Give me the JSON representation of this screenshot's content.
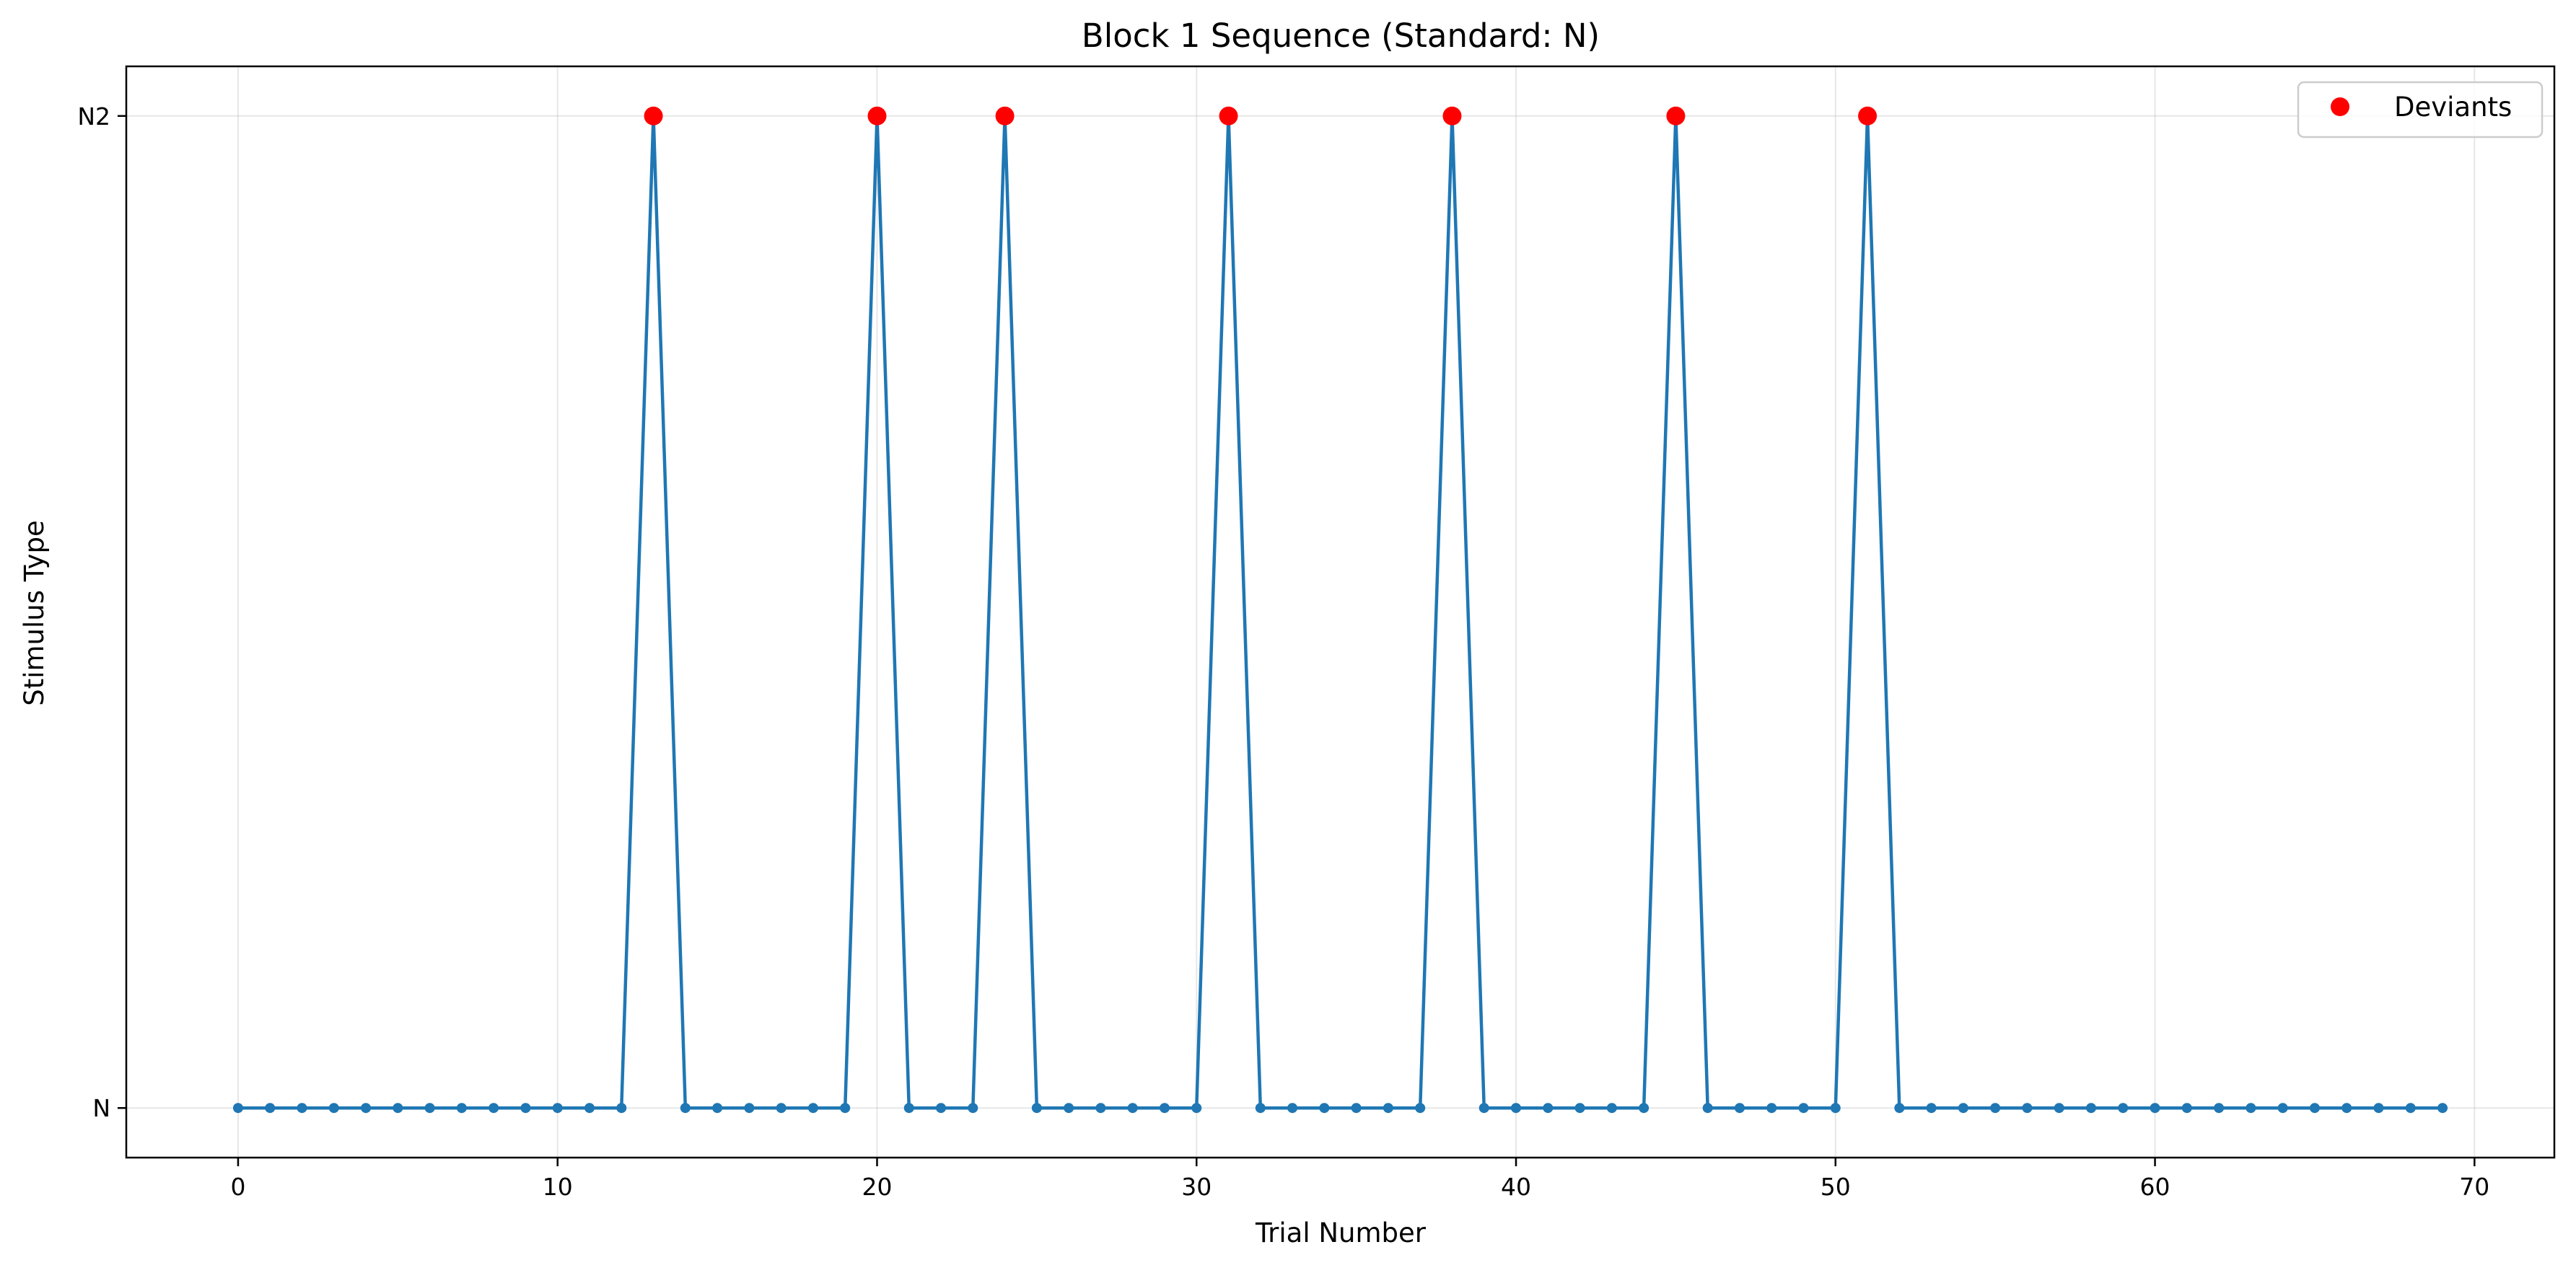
{
  "chart_data": {
    "type": "line",
    "title": "Block 1 Sequence (Standard: N)",
    "xlabel": "Trial Number",
    "ylabel": "Stimulus Type",
    "xlim": [
      -3.5,
      72.5
    ],
    "ylim": [
      -0.05,
      1.05
    ],
    "x_ticks": [
      0,
      10,
      20,
      30,
      40,
      50,
      60,
      70
    ],
    "y_ticks": [
      {
        "value": 0,
        "label": "N"
      },
      {
        "value": 1,
        "label": "N2"
      }
    ],
    "grid": true,
    "legend": {
      "placement": "top-right",
      "entries": [
        "Deviants"
      ]
    },
    "series": [
      {
        "color": "#1f77b4",
        "x": [
          0,
          1,
          2,
          3,
          4,
          5,
          6,
          7,
          8,
          9,
          10,
          11,
          12,
          13,
          14,
          15,
          16,
          17,
          18,
          19,
          20,
          21,
          22,
          23,
          24,
          25,
          26,
          27,
          28,
          29,
          30,
          31,
          32,
          33,
          34,
          35,
          36,
          37,
          38,
          39,
          40,
          41,
          42,
          43,
          44,
          45,
          46,
          47,
          48,
          49,
          50,
          51,
          52,
          53,
          54,
          55,
          56,
          57,
          58,
          59,
          60,
          61,
          62,
          63,
          64,
          65,
          66,
          67,
          68,
          69
        ],
        "y": [
          0,
          0,
          0,
          0,
          0,
          0,
          0,
          0,
          0,
          0,
          0,
          0,
          0,
          1,
          0,
          0,
          0,
          0,
          0,
          0,
          1,
          0,
          0,
          0,
          1,
          0,
          0,
          0,
          0,
          0,
          0,
          1,
          0,
          0,
          0,
          0,
          0,
          0,
          1,
          0,
          0,
          0,
          0,
          0,
          0,
          1,
          0,
          0,
          0,
          0,
          0,
          1,
          0,
          0,
          0,
          0,
          0,
          0,
          0,
          0,
          0,
          0,
          0,
          0,
          0,
          0,
          0,
          0,
          0,
          0
        ]
      },
      {
        "name": "Deviants",
        "color": "#ff0000",
        "x": [
          13,
          20,
          24,
          31,
          38,
          45,
          51
        ],
        "y": [
          1,
          1,
          1,
          1,
          1,
          1,
          1
        ]
      }
    ]
  }
}
